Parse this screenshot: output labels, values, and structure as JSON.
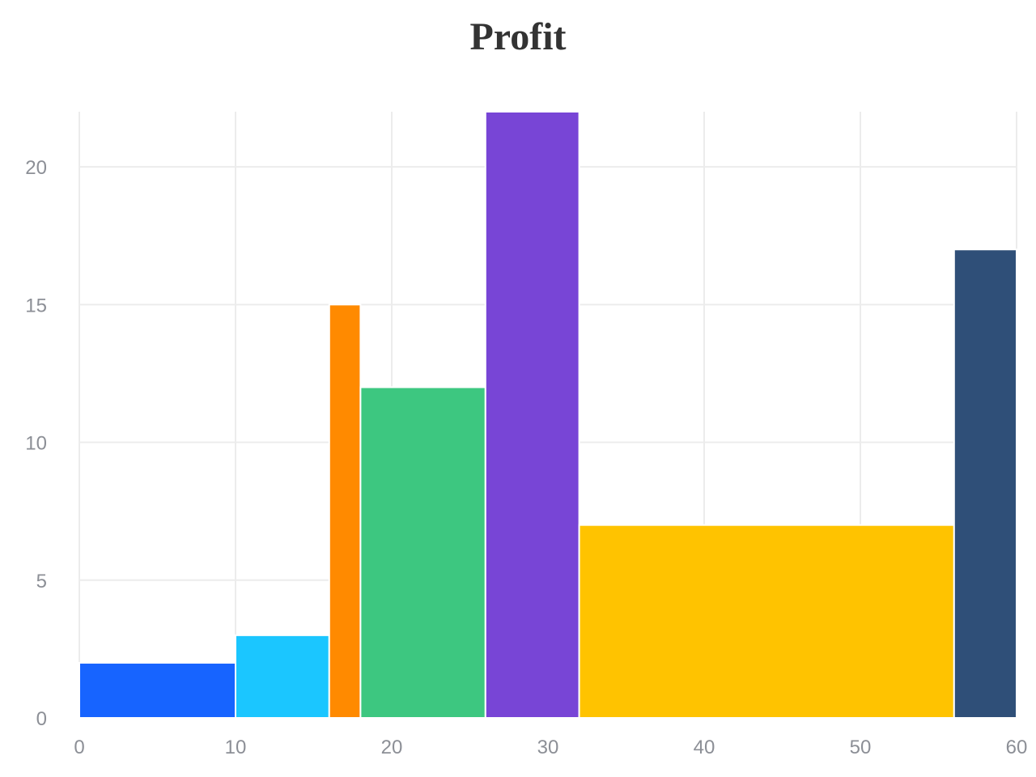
{
  "chart_data": {
    "type": "bar",
    "title": "Profit",
    "xlabel": "",
    "ylabel": "",
    "xlim": [
      0,
      60
    ],
    "ylim": [
      0,
      22
    ],
    "x_ticks": [
      0,
      10,
      20,
      30,
      40,
      50,
      60
    ],
    "y_ticks": [
      0,
      5,
      10,
      15,
      20
    ],
    "grid": true,
    "legend": "none",
    "bins": [
      {
        "x0": 0,
        "x1": 10,
        "value": 2,
        "color": "#1764ff"
      },
      {
        "x0": 10,
        "x1": 16,
        "value": 3,
        "color": "#1bc6ff"
      },
      {
        "x0": 16,
        "x1": 18,
        "value": 15,
        "color": "#ff8a00"
      },
      {
        "x0": 18,
        "x1": 26,
        "value": 12,
        "color": "#3dc780"
      },
      {
        "x0": 26,
        "x1": 32,
        "value": 22,
        "color": "#7845d6"
      },
      {
        "x0": 32,
        "x1": 56,
        "value": 7,
        "color": "#ffc300"
      },
      {
        "x0": 56,
        "x1": 60,
        "value": 17,
        "color": "#2f4f78"
      }
    ]
  }
}
